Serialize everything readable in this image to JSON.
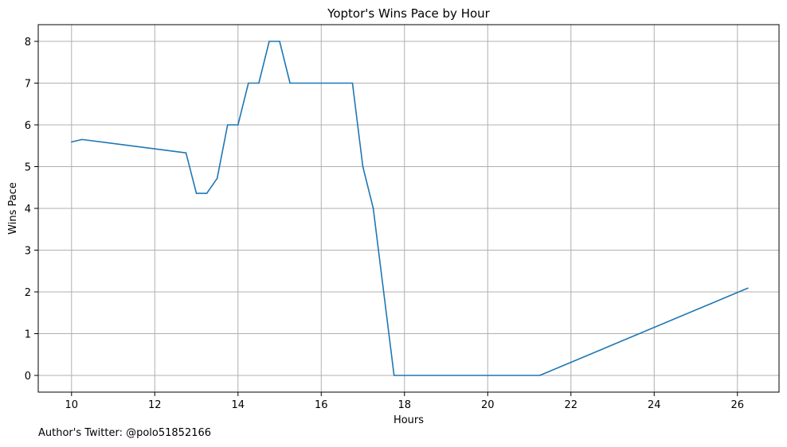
{
  "chart_data": {
    "type": "line",
    "title": "Yoptor's Wins Pace by Hour",
    "xlabel": "Hours",
    "ylabel": "Wins Pace",
    "xlim": [
      9.2,
      27.0
    ],
    "ylim": [
      -0.4,
      8.4
    ],
    "xticks": [
      10,
      12,
      14,
      16,
      18,
      20,
      22,
      24,
      26
    ],
    "yticks": [
      0,
      1,
      2,
      3,
      4,
      5,
      6,
      7,
      8
    ],
    "grid": true,
    "line_color": "#1f77b4",
    "series": [
      {
        "x": [
          10.0,
          10.25,
          12.75,
          13.0,
          13.25,
          13.5,
          13.75,
          14.0,
          14.25,
          14.5,
          14.75,
          15.0,
          15.25,
          16.75,
          17.0,
          17.25,
          17.75,
          21.25,
          26.25
        ],
        "y": [
          5.59,
          5.65,
          5.33,
          4.36,
          4.36,
          4.72,
          6.0,
          6.0,
          7.0,
          7.0,
          8.0,
          8.0,
          7.0,
          7.0,
          5.0,
          4.0,
          0.0,
          0.0,
          2.09
        ]
      }
    ]
  },
  "footnote": "Author's Twitter: @polo51852166"
}
